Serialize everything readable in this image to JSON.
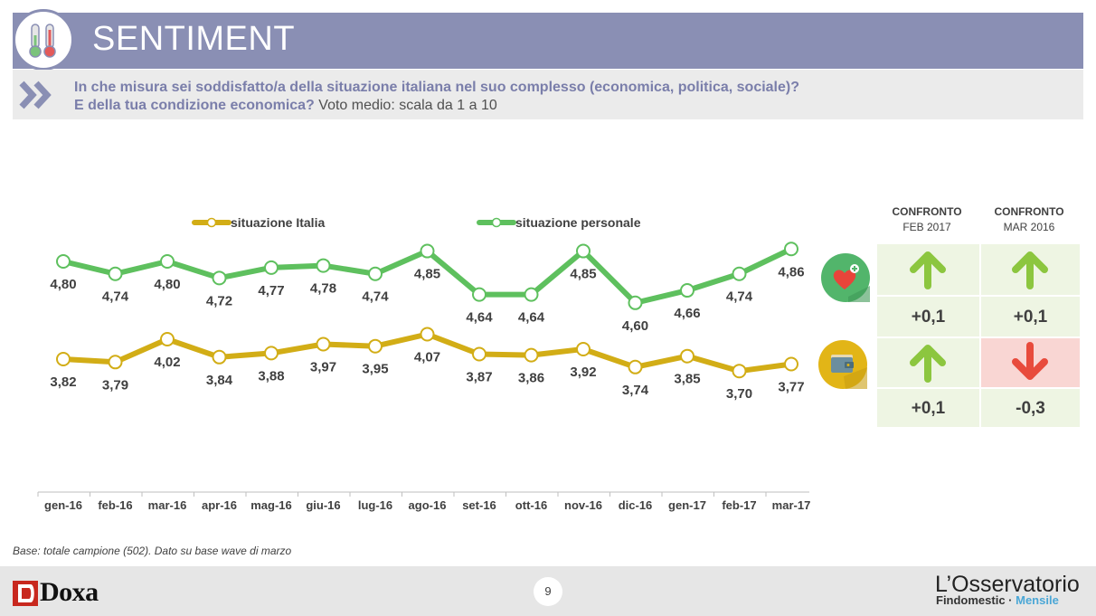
{
  "header": {
    "title": "SENTIMENT",
    "question_line1": "In che misura sei soddisfatto/a della situazione italiana nel suo complesso (economica, politica, sociale)?",
    "question_line2_strong": "E della tua condizione economica?",
    "question_line2_light": " Voto medio: scala da 1 a 10"
  },
  "chart_data": {
    "type": "line",
    "categories": [
      "gen-16",
      "feb-16",
      "mar-16",
      "apr-16",
      "mag-16",
      "giu-16",
      "lug-16",
      "ago-16",
      "set-16",
      "ott-16",
      "nov-16",
      "dic-16",
      "gen-17",
      "feb-17",
      "mar-17"
    ],
    "series": [
      {
        "name": "situazione personale",
        "color": "#5ec05e",
        "values": [
          4.8,
          4.74,
          4.8,
          4.72,
          4.77,
          4.78,
          4.74,
          4.85,
          4.64,
          4.64,
          4.85,
          4.6,
          4.66,
          4.74,
          4.86
        ],
        "labels": [
          "4,80",
          "4,74",
          "4,80",
          "4,72",
          "4,77",
          "4,78",
          "4,74",
          "4,85",
          "4,64",
          "4,64",
          "4,85",
          "4,60",
          "4,66",
          "4,74",
          "4,86"
        ]
      },
      {
        "name": "situazione Italia",
        "color": "#d2ad16",
        "values": [
          3.82,
          3.79,
          4.02,
          3.84,
          3.88,
          3.97,
          3.95,
          4.07,
          3.87,
          3.86,
          3.92,
          3.74,
          3.85,
          3.7,
          3.77
        ],
        "labels": [
          "3,82",
          "3,79",
          "4,02",
          "3,84",
          "3,88",
          "3,97",
          "3,95",
          "4,07",
          "3,87",
          "3,86",
          "3,92",
          "3,74",
          "3,85",
          "3,70",
          "3,77"
        ]
      }
    ],
    "legend_position": "top",
    "grid": false
  },
  "comparison": {
    "headers": [
      {
        "bold": "CONFRONTO",
        "sub": "FEB 2017"
      },
      {
        "bold": "CONFRONTO",
        "sub": "MAR 2016"
      }
    ],
    "rows": [
      {
        "icon": "heart-icon",
        "cells": [
          {
            "direction": "up",
            "value": "+0,1"
          },
          {
            "direction": "up",
            "value": "+0,1"
          }
        ]
      },
      {
        "icon": "wallet-icon",
        "cells": [
          {
            "direction": "up",
            "value": "+0,1"
          },
          {
            "direction": "down",
            "value": "-0,3"
          }
        ]
      }
    ],
    "colors": {
      "up_bg": "#eef5e3",
      "down_bg": "#f9d6d3",
      "up_arrow": "#8cc63f",
      "down_arrow": "#e84b3c"
    }
  },
  "footer": {
    "base_note": "Base: totale campione (502). Dato su base wave di marzo",
    "page_number": "9",
    "brand_left": "Doxa",
    "brand_right_title": "L’Osservatorio",
    "brand_right_sub_a": "Findomestic · ",
    "brand_right_sub_b": "Mensile"
  }
}
